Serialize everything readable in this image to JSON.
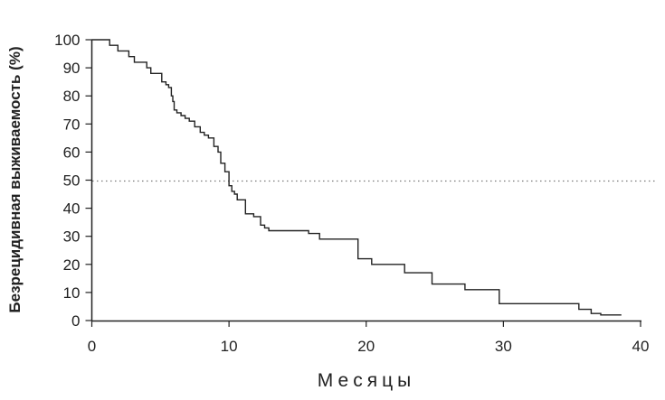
{
  "chart_data": {
    "type": "line",
    "title": "",
    "xlabel": "Месяцы",
    "ylabel": "Безрецидивная выживаемость (%)",
    "xlim": [
      0,
      40
    ],
    "ylim": [
      0,
      100
    ],
    "x_ticks": [
      "0",
      "10",
      "20",
      "30",
      "40"
    ],
    "y_ticks": [
      "0",
      "10",
      "20",
      "30",
      "40",
      "50",
      "60",
      "70",
      "80",
      "90",
      "100"
    ],
    "grid": false,
    "legend": "none",
    "reference_line": {
      "y": 50,
      "style": "dotted"
    },
    "series": [
      {
        "step": true,
        "color": "#222222",
        "x": [
          0,
          1.3,
          1.9,
          2.7,
          3.1,
          4.0,
          4.3,
          5.1,
          5.4,
          5.6,
          5.8,
          5.9,
          6.0,
          6.2,
          6.5,
          6.8,
          7.1,
          7.5,
          7.9,
          8.2,
          8.5,
          8.9,
          9.2,
          9.4,
          9.7,
          10.0,
          10.2,
          10.4,
          10.6,
          11.2,
          11.8,
          12.3,
          12.6,
          12.9,
          13.7,
          15.8,
          16.6,
          19.4,
          20.4,
          22.8,
          24.8,
          27.2,
          29.7,
          35.5,
          36.4,
          37.1,
          38.6
        ],
        "y": [
          100,
          98,
          96,
          94,
          92,
          90,
          88,
          85,
          84,
          83,
          80,
          78,
          75,
          74,
          73,
          72,
          71,
          69,
          67,
          66,
          65,
          62,
          60,
          56,
          53,
          48,
          46,
          45,
          43,
          38,
          37,
          34,
          33,
          32,
          32,
          31,
          29,
          22,
          20,
          17,
          13,
          11,
          6,
          4,
          2.5,
          2,
          2
        ]
      }
    ]
  }
}
